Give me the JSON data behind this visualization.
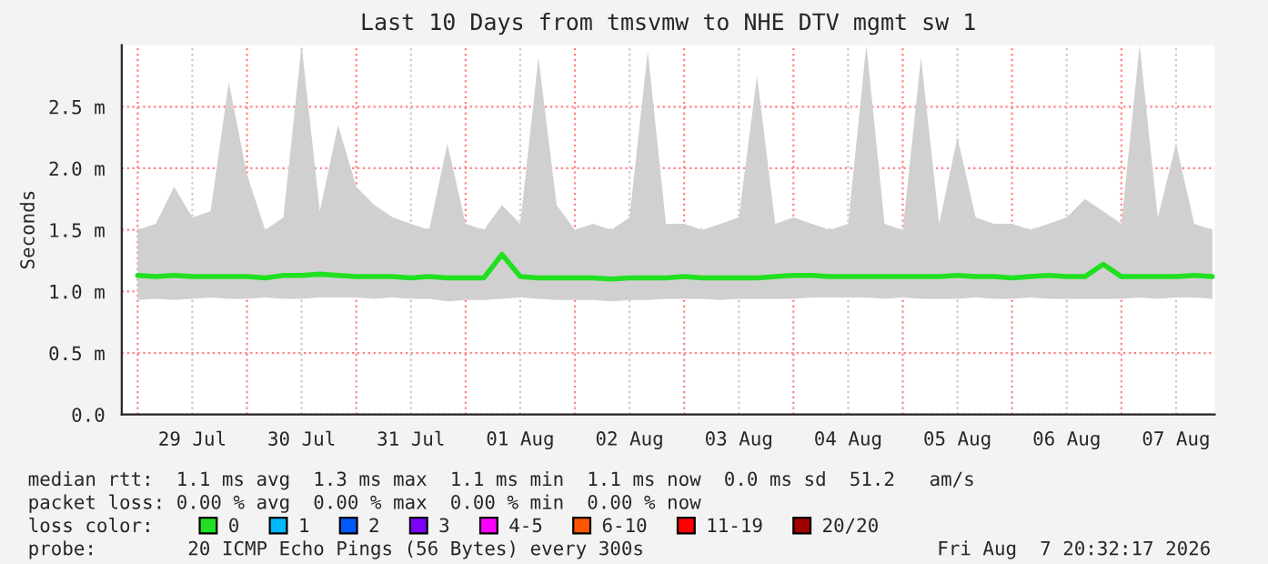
{
  "chart_data": {
    "type": "line",
    "title": "Last 10 Days from tmsvmw to NHE DTV mgmt sw 1",
    "ylabel": "Seconds",
    "x": [
      "2026-07-29T00:00",
      "2026-07-29T04:00",
      "2026-07-29T08:00",
      "2026-07-29T12:00",
      "2026-07-29T16:00",
      "2026-07-29T20:00",
      "2026-07-30T00:00",
      "2026-07-30T04:00",
      "2026-07-30T08:00",
      "2026-07-30T12:00",
      "2026-07-30T16:00",
      "2026-07-30T20:00",
      "2026-07-31T00:00",
      "2026-07-31T04:00",
      "2026-07-31T08:00",
      "2026-07-31T12:00",
      "2026-07-31T16:00",
      "2026-07-31T20:00",
      "2026-08-01T00:00",
      "2026-08-01T04:00",
      "2026-08-01T08:00",
      "2026-08-01T12:00",
      "2026-08-01T16:00",
      "2026-08-01T20:00",
      "2026-08-02T00:00",
      "2026-08-02T04:00",
      "2026-08-02T08:00",
      "2026-08-02T12:00",
      "2026-08-02T16:00",
      "2026-08-02T20:00",
      "2026-08-03T00:00",
      "2026-08-03T04:00",
      "2026-08-03T08:00",
      "2026-08-03T12:00",
      "2026-08-03T16:00",
      "2026-08-03T20:00",
      "2026-08-04T00:00",
      "2026-08-04T04:00",
      "2026-08-04T08:00",
      "2026-08-04T12:00",
      "2026-08-04T16:00",
      "2026-08-04T20:00",
      "2026-08-05T00:00",
      "2026-08-05T04:00",
      "2026-08-05T08:00",
      "2026-08-05T12:00",
      "2026-08-05T16:00",
      "2026-08-05T20:00",
      "2026-08-06T00:00",
      "2026-08-06T04:00",
      "2026-08-06T08:00",
      "2026-08-06T12:00",
      "2026-08-06T16:00",
      "2026-08-06T20:00",
      "2026-08-07T00:00",
      "2026-08-07T04:00",
      "2026-08-07T08:00",
      "2026-08-07T12:00",
      "2026-08-07T16:00",
      "2026-08-07T20:00"
    ],
    "series": [
      {
        "name": "0",
        "color": "#20e020",
        "values": [
          1.13,
          1.12,
          1.13,
          1.12,
          1.12,
          1.12,
          1.12,
          1.11,
          1.13,
          1.13,
          1.14,
          1.13,
          1.12,
          1.12,
          1.12,
          1.11,
          1.12,
          1.11,
          1.11,
          1.11,
          1.3,
          1.12,
          1.11,
          1.11,
          1.11,
          1.11,
          1.1,
          1.11,
          1.11,
          1.11,
          1.12,
          1.11,
          1.11,
          1.11,
          1.11,
          1.12,
          1.13,
          1.13,
          1.12,
          1.12,
          1.12,
          1.12,
          1.12,
          1.12,
          1.12,
          1.13,
          1.12,
          1.12,
          1.11,
          1.12,
          1.13,
          1.12,
          1.12,
          1.22,
          1.12,
          1.12,
          1.12,
          1.12,
          1.13,
          1.12
        ],
        "lower": [
          0.93,
          0.94,
          0.93,
          0.94,
          0.95,
          0.94,
          0.94,
          0.95,
          0.94,
          0.94,
          0.95,
          0.95,
          0.95,
          0.94,
          0.95,
          0.94,
          0.94,
          0.92,
          0.93,
          0.93,
          0.94,
          0.95,
          0.94,
          0.93,
          0.93,
          0.93,
          0.92,
          0.93,
          0.93,
          0.94,
          0.94,
          0.94,
          0.93,
          0.94,
          0.94,
          0.94,
          0.94,
          0.95,
          0.95,
          0.95,
          0.95,
          0.94,
          0.95,
          0.94,
          0.94,
          0.94,
          0.95,
          0.94,
          0.94,
          0.95,
          0.94,
          0.94,
          0.94,
          0.94,
          0.94,
          0.95,
          0.94,
          0.95,
          0.95,
          0.94
        ],
        "upper": [
          1.5,
          1.55,
          1.85,
          1.6,
          1.65,
          2.7,
          1.95,
          1.5,
          1.6,
          3.0,
          1.65,
          2.35,
          1.85,
          1.7,
          1.6,
          1.55,
          1.5,
          2.2,
          1.55,
          1.5,
          1.7,
          1.55,
          2.9,
          1.7,
          1.5,
          1.55,
          1.5,
          1.6,
          2.95,
          1.55,
          1.55,
          1.5,
          1.55,
          1.6,
          2.75,
          1.55,
          1.6,
          1.55,
          1.5,
          1.55,
          3.0,
          1.55,
          1.5,
          2.9,
          1.55,
          2.25,
          1.6,
          1.55,
          1.55,
          1.5,
          1.55,
          1.6,
          1.75,
          1.65,
          1.55,
          3.0,
          1.6,
          2.2,
          1.55,
          1.5
        ]
      },
      {
        "name": "1",
        "color": "#00b8ff",
        "values": [
          null,
          null,
          null,
          null,
          null,
          null,
          null,
          null,
          null,
          null,
          null,
          null,
          null,
          null,
          null,
          null,
          null,
          null,
          null,
          null,
          null,
          null,
          null,
          null,
          null,
          null,
          null,
          null,
          null,
          null,
          null,
          null,
          null,
          null,
          null,
          null,
          null,
          null,
          null,
          null,
          null,
          null,
          null,
          null,
          null,
          null,
          null,
          null,
          null,
          null,
          null,
          null,
          null,
          null,
          null,
          null,
          null,
          null,
          null,
          null
        ]
      },
      {
        "name": "2",
        "color": "#0059ff",
        "values": [
          null,
          null,
          null,
          null,
          null,
          null,
          null,
          null,
          null,
          null,
          null,
          null,
          null,
          null,
          null,
          null,
          null,
          null,
          null,
          null,
          null,
          null,
          null,
          null,
          null,
          null,
          null,
          null,
          null,
          null,
          null,
          null,
          null,
          null,
          null,
          null,
          null,
          null,
          null,
          null,
          null,
          null,
          null,
          null,
          null,
          null,
          null,
          null,
          null,
          null,
          null,
          null,
          null,
          null,
          null,
          null,
          null,
          null,
          null,
          null
        ]
      },
      {
        "name": "3",
        "color": "#7e00ff",
        "values": [
          null,
          null,
          null,
          null,
          null,
          null,
          null,
          null,
          null,
          null,
          null,
          null,
          null,
          null,
          null,
          null,
          null,
          null,
          null,
          null,
          null,
          null,
          null,
          null,
          null,
          null,
          null,
          null,
          null,
          null,
          null,
          null,
          null,
          null,
          null,
          null,
          null,
          null,
          null,
          null,
          null,
          null,
          null,
          null,
          null,
          null,
          null,
          null,
          null,
          null,
          null,
          null,
          null,
          null,
          null,
          null,
          null,
          null,
          null,
          null
        ]
      },
      {
        "name": "4-5",
        "color": "#ff00ff",
        "values": [
          null,
          null,
          null,
          null,
          null,
          null,
          null,
          null,
          null,
          null,
          null,
          null,
          null,
          null,
          null,
          null,
          null,
          null,
          null,
          null,
          null,
          null,
          null,
          null,
          null,
          null,
          null,
          null,
          null,
          null,
          null,
          null,
          null,
          null,
          null,
          null,
          null,
          null,
          null,
          null,
          null,
          null,
          null,
          null,
          null,
          null,
          null,
          null,
          null,
          null,
          null,
          null,
          null,
          null,
          null,
          null,
          null,
          null,
          null,
          null
        ]
      },
      {
        "name": "6-10",
        "color": "#ff5500",
        "values": [
          null,
          null,
          null,
          null,
          null,
          null,
          null,
          null,
          null,
          null,
          null,
          null,
          null,
          null,
          null,
          null,
          null,
          null,
          null,
          null,
          null,
          null,
          null,
          null,
          null,
          null,
          null,
          null,
          null,
          null,
          null,
          null,
          null,
          null,
          null,
          null,
          null,
          null,
          null,
          null,
          null,
          null,
          null,
          null,
          null,
          null,
          null,
          null,
          null,
          null,
          null,
          null,
          null,
          null,
          null,
          null,
          null,
          null,
          null,
          null
        ]
      },
      {
        "name": "11-19",
        "color": "#ff0000",
        "values": [
          null,
          null,
          null,
          null,
          null,
          null,
          null,
          null,
          null,
          null,
          null,
          null,
          null,
          null,
          null,
          null,
          null,
          null,
          null,
          null,
          null,
          null,
          null,
          null,
          null,
          null,
          null,
          null,
          null,
          null,
          null,
          null,
          null,
          null,
          null,
          null,
          null,
          null,
          null,
          null,
          null,
          null,
          null,
          null,
          null,
          null,
          null,
          null,
          null,
          null,
          null,
          null,
          null,
          null,
          null,
          null,
          null,
          null,
          null,
          null
        ]
      },
      {
        "name": "20/20",
        "color": "#a10000",
        "values": [
          null,
          null,
          null,
          null,
          null,
          null,
          null,
          null,
          null,
          null,
          null,
          null,
          null,
          null,
          null,
          null,
          null,
          null,
          null,
          null,
          null,
          null,
          null,
          null,
          null,
          null,
          null,
          null,
          null,
          null,
          null,
          null,
          null,
          null,
          null,
          null,
          null,
          null,
          null,
          null,
          null,
          null,
          null,
          null,
          null,
          null,
          null,
          null,
          null,
          null,
          null,
          null,
          null,
          null,
          null,
          null,
          null,
          null,
          null,
          null
        ]
      }
    ],
    "xlim": [
      "2026-07-28T20:30",
      "2026-08-07T20:30"
    ],
    "xticks": [
      {
        "value": "2026-07-29T00:00",
        "label": null
      },
      {
        "value": "2026-07-29T12:00",
        "label": "29 Jul"
      },
      {
        "value": "2026-07-30T00:00",
        "label": null
      },
      {
        "value": "2026-07-30T12:00",
        "label": "30 Jul"
      },
      {
        "value": "2026-07-31T00:00",
        "label": null
      },
      {
        "value": "2026-07-31T12:00",
        "label": "31 Jul"
      },
      {
        "value": "2026-08-01T00:00",
        "label": null
      },
      {
        "value": "2026-08-01T12:00",
        "label": "01 Aug"
      },
      {
        "value": "2026-08-02T00:00",
        "label": null
      },
      {
        "value": "2026-08-02T12:00",
        "label": "02 Aug"
      },
      {
        "value": "2026-08-03T00:00",
        "label": null
      },
      {
        "value": "2026-08-03T12:00",
        "label": "03 Aug"
      },
      {
        "value": "2026-08-04T00:00",
        "label": null
      },
      {
        "value": "2026-08-04T12:00",
        "label": "04 Aug"
      },
      {
        "value": "2026-08-05T00:00",
        "label": null
      },
      {
        "value": "2026-08-05T12:00",
        "label": "05 Aug"
      },
      {
        "value": "2026-08-06T00:00",
        "label": null
      },
      {
        "value": "2026-08-06T12:00",
        "label": "06 Aug"
      },
      {
        "value": "2026-08-07T00:00",
        "label": null
      },
      {
        "value": "2026-08-07T12:00",
        "label": "07 Aug"
      }
    ],
    "ylim": [
      0,
      3.0
    ],
    "yticks": [
      {
        "value": 0,
        "label": "0.0"
      },
      {
        "value": 0.5,
        "label": "0.5 m"
      },
      {
        "value": 1.0,
        "label": "1.0 m"
      },
      {
        "value": 1.5,
        "label": "1.5 m"
      },
      {
        "value": 2.0,
        "label": "2.0 m"
      },
      {
        "value": 2.5,
        "label": "2.5 m"
      }
    ],
    "grid": true,
    "legend": "bottom",
    "legend_title": "loss color:",
    "annotations": [
      "median rtt:  1.1 ms avg  1.3 ms max  1.1 ms min  1.1 ms now  0.0 ms sd  51.2   am/s",
      "packet loss: 0.00 % avg  0.00 % max  0.00 % min  0.00 % now",
      "probe:        20 ICMP Echo Pings (56 Bytes) every 300s",
      "Fri Aug  7 20:32:17 2026"
    ]
  }
}
